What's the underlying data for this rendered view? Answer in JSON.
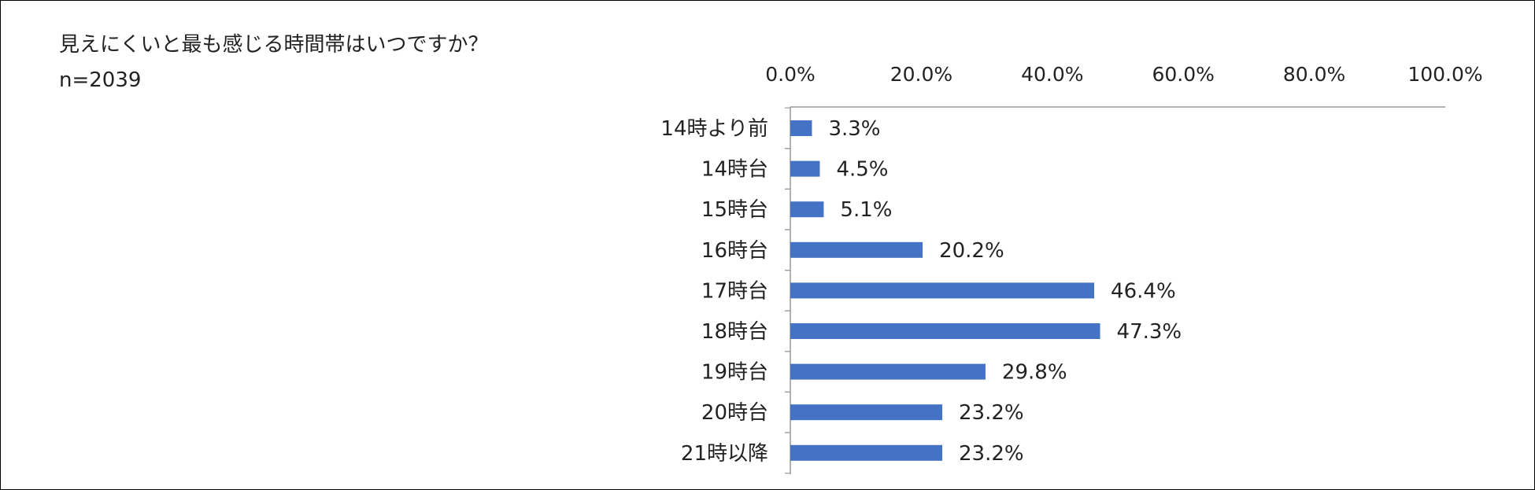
{
  "chart_data": {
    "type": "bar",
    "orientation": "horizontal",
    "title": "見えにくいと最も感じる時間帯はいつですか？",
    "subtitle": "n=2039",
    "categories": [
      "14時より前",
      "14時台",
      "15時台",
      "16時台",
      "17時台",
      "18時台",
      "19時台",
      "20時台",
      "21時以降"
    ],
    "values": [
      3.3,
      4.5,
      5.1,
      20.2,
      46.4,
      47.3,
      29.8,
      23.2,
      23.2
    ],
    "value_labels": [
      "3.3%",
      "4.5%",
      "5.1%",
      "20.2%",
      "46.4%",
      "47.3%",
      "29.8%",
      "23.2%",
      "23.2%"
    ],
    "xlim": [
      0,
      100
    ],
    "x_ticks": [
      0,
      20,
      40,
      60,
      80,
      100
    ],
    "x_tick_labels": [
      "0.0%",
      "20.0%",
      "40.0%",
      "60.0%",
      "80.0%",
      "100.0%"
    ],
    "x_axis_position": "top",
    "grid": false,
    "legend": "none",
    "bar_color": "#4472C4"
  }
}
